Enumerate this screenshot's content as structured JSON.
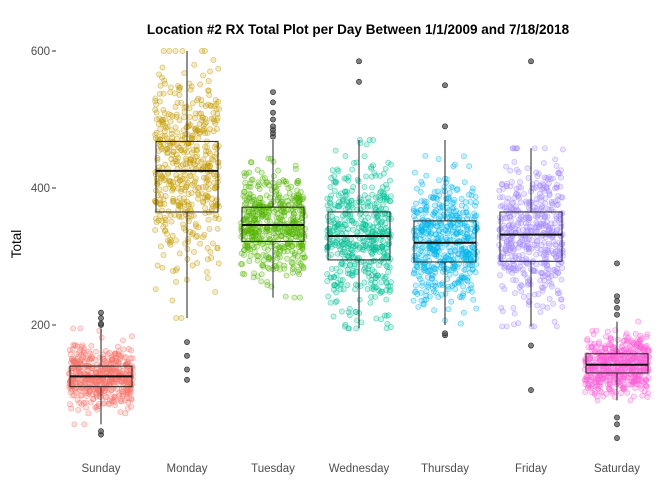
{
  "chart_data": {
    "type": "boxplot",
    "title": "Location #2 RX Total Plot per Day Between 1/1/2009 and 7/18/2018",
    "xlabel": "",
    "ylabel": "Total",
    "y_ticks": [
      200,
      400,
      600
    ],
    "ylim": [
      20,
      610
    ],
    "grid": false,
    "legend": "none",
    "jitter_points_per_day": 500,
    "categories": [
      "Sunday",
      "Monday",
      "Tuesday",
      "Wednesday",
      "Thursday",
      "Friday",
      "Saturday"
    ],
    "colors": [
      "#F8766D",
      "#C49A00",
      "#53B400",
      "#00C094",
      "#00B6EB",
      "#A58AFF",
      "#FB61D7"
    ],
    "series": [
      {
        "category": "Sunday",
        "q1": 110,
        "median": 125,
        "q3": 140,
        "whisker_low": 55,
        "whisker_high": 195,
        "outliers": [
          40,
          45,
          200,
          202,
          210,
          218
        ]
      },
      {
        "category": "Monday",
        "q1": 365,
        "median": 425,
        "q3": 468,
        "whisker_low": 210,
        "whisker_high": 600,
        "outliers": [
          120,
          135,
          155,
          175
        ]
      },
      {
        "category": "Tuesday",
        "q1": 322,
        "median": 346,
        "q3": 372,
        "whisker_low": 240,
        "whisker_high": 470,
        "outliers": [
          475,
          480,
          485,
          490,
          500,
          510,
          525,
          540
        ]
      },
      {
        "category": "Wednesday",
        "q1": 295,
        "median": 330,
        "q3": 365,
        "whisker_low": 195,
        "whisker_high": 470,
        "outliers": [
          555,
          585
        ]
      },
      {
        "category": "Thursday",
        "q1": 292,
        "median": 320,
        "q3": 352,
        "whisker_low": 200,
        "whisker_high": 470,
        "outliers": [
          185,
          188,
          490,
          550
        ]
      },
      {
        "category": "Friday",
        "q1": 293,
        "median": 332,
        "q3": 365,
        "whisker_low": 198,
        "whisker_high": 458,
        "outliers": [
          105,
          170,
          585
        ]
      },
      {
        "category": "Saturday",
        "q1": 130,
        "median": 142,
        "q3": 158,
        "whisker_low": 90,
        "whisker_high": 205,
        "outliers": [
          35,
          55,
          65,
          215,
          225,
          235,
          242,
          290
        ]
      }
    ]
  }
}
